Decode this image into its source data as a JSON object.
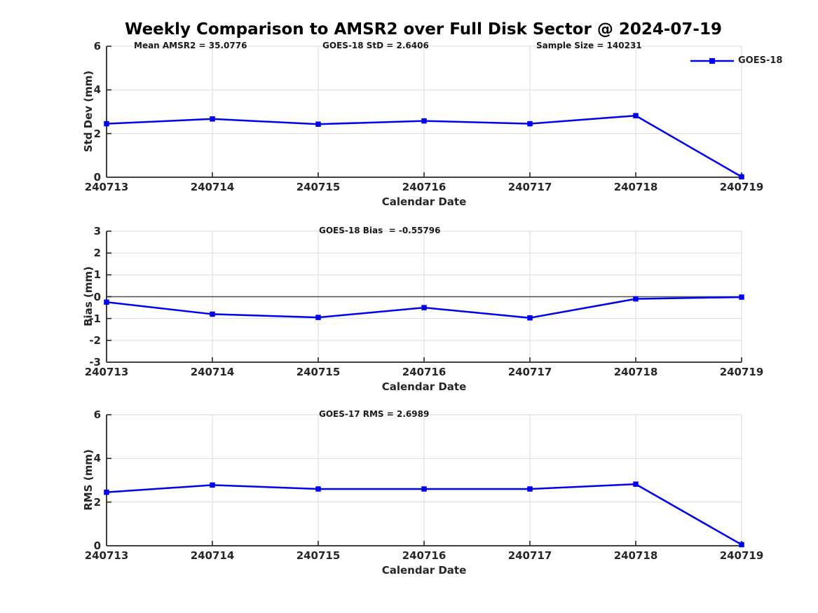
{
  "figure_title": "Weekly Comparison to AMSR2 over Full Disk Sector @ 2024-07-19",
  "legend": {
    "label": "GOES-18"
  },
  "colors": {
    "line": "#0000EE",
    "axis": "#262626",
    "grid": "#DBDBDB",
    "zero_line": "#4D4D4D",
    "text": "#262626",
    "background": "#FFFFFF"
  },
  "chart_data": [
    {
      "type": "line",
      "title": "",
      "xlabel": "Calendar Date",
      "ylabel": "Std Dev (mm)",
      "ylim": [
        0,
        6
      ],
      "yticks": [
        0,
        2,
        4,
        6
      ],
      "grid": true,
      "zero_line": false,
      "legend_position": "top-right",
      "categories": [
        "240713",
        "240714",
        "240715",
        "240716",
        "240717",
        "240718",
        "240719"
      ],
      "series": [
        {
          "name": "GOES-18",
          "values": [
            2.45,
            2.67,
            2.43,
            2.58,
            2.45,
            2.82,
            0.02
          ]
        }
      ],
      "annotations": [
        "Mean AMSR2 = 35.0776",
        "GOES-18 StD = 2.6406",
        "Sample Size = 140231"
      ]
    },
    {
      "type": "line",
      "title": "",
      "xlabel": "Calendar Date",
      "ylabel": "Bias (mm)",
      "ylim": [
        -3,
        3
      ],
      "yticks": [
        -3,
        -2,
        -1,
        0,
        1,
        2,
        3
      ],
      "grid": true,
      "zero_line": true,
      "legend_position": "none",
      "categories": [
        "240713",
        "240714",
        "240715",
        "240716",
        "240717",
        "240718",
        "240719"
      ],
      "series": [
        {
          "name": "GOES-18",
          "values": [
            -0.25,
            -0.8,
            -0.95,
            -0.5,
            -0.97,
            -0.1,
            -0.02
          ]
        }
      ],
      "annotations": [
        "GOES-18 Bias  = -0.55796"
      ]
    },
    {
      "type": "line",
      "title": "",
      "xlabel": "Calendar Date",
      "ylabel": "RMS (mm)",
      "ylim": [
        0,
        6
      ],
      "yticks": [
        0,
        2,
        4,
        6
      ],
      "grid": true,
      "zero_line": false,
      "legend_position": "none",
      "categories": [
        "240713",
        "240714",
        "240715",
        "240716",
        "240717",
        "240718",
        "240719"
      ],
      "series": [
        {
          "name": "GOES-18",
          "values": [
            2.45,
            2.78,
            2.6,
            2.6,
            2.6,
            2.82,
            0.05
          ]
        }
      ],
      "annotations": [
        "GOES-17 RMS = 2.6989"
      ]
    }
  ]
}
